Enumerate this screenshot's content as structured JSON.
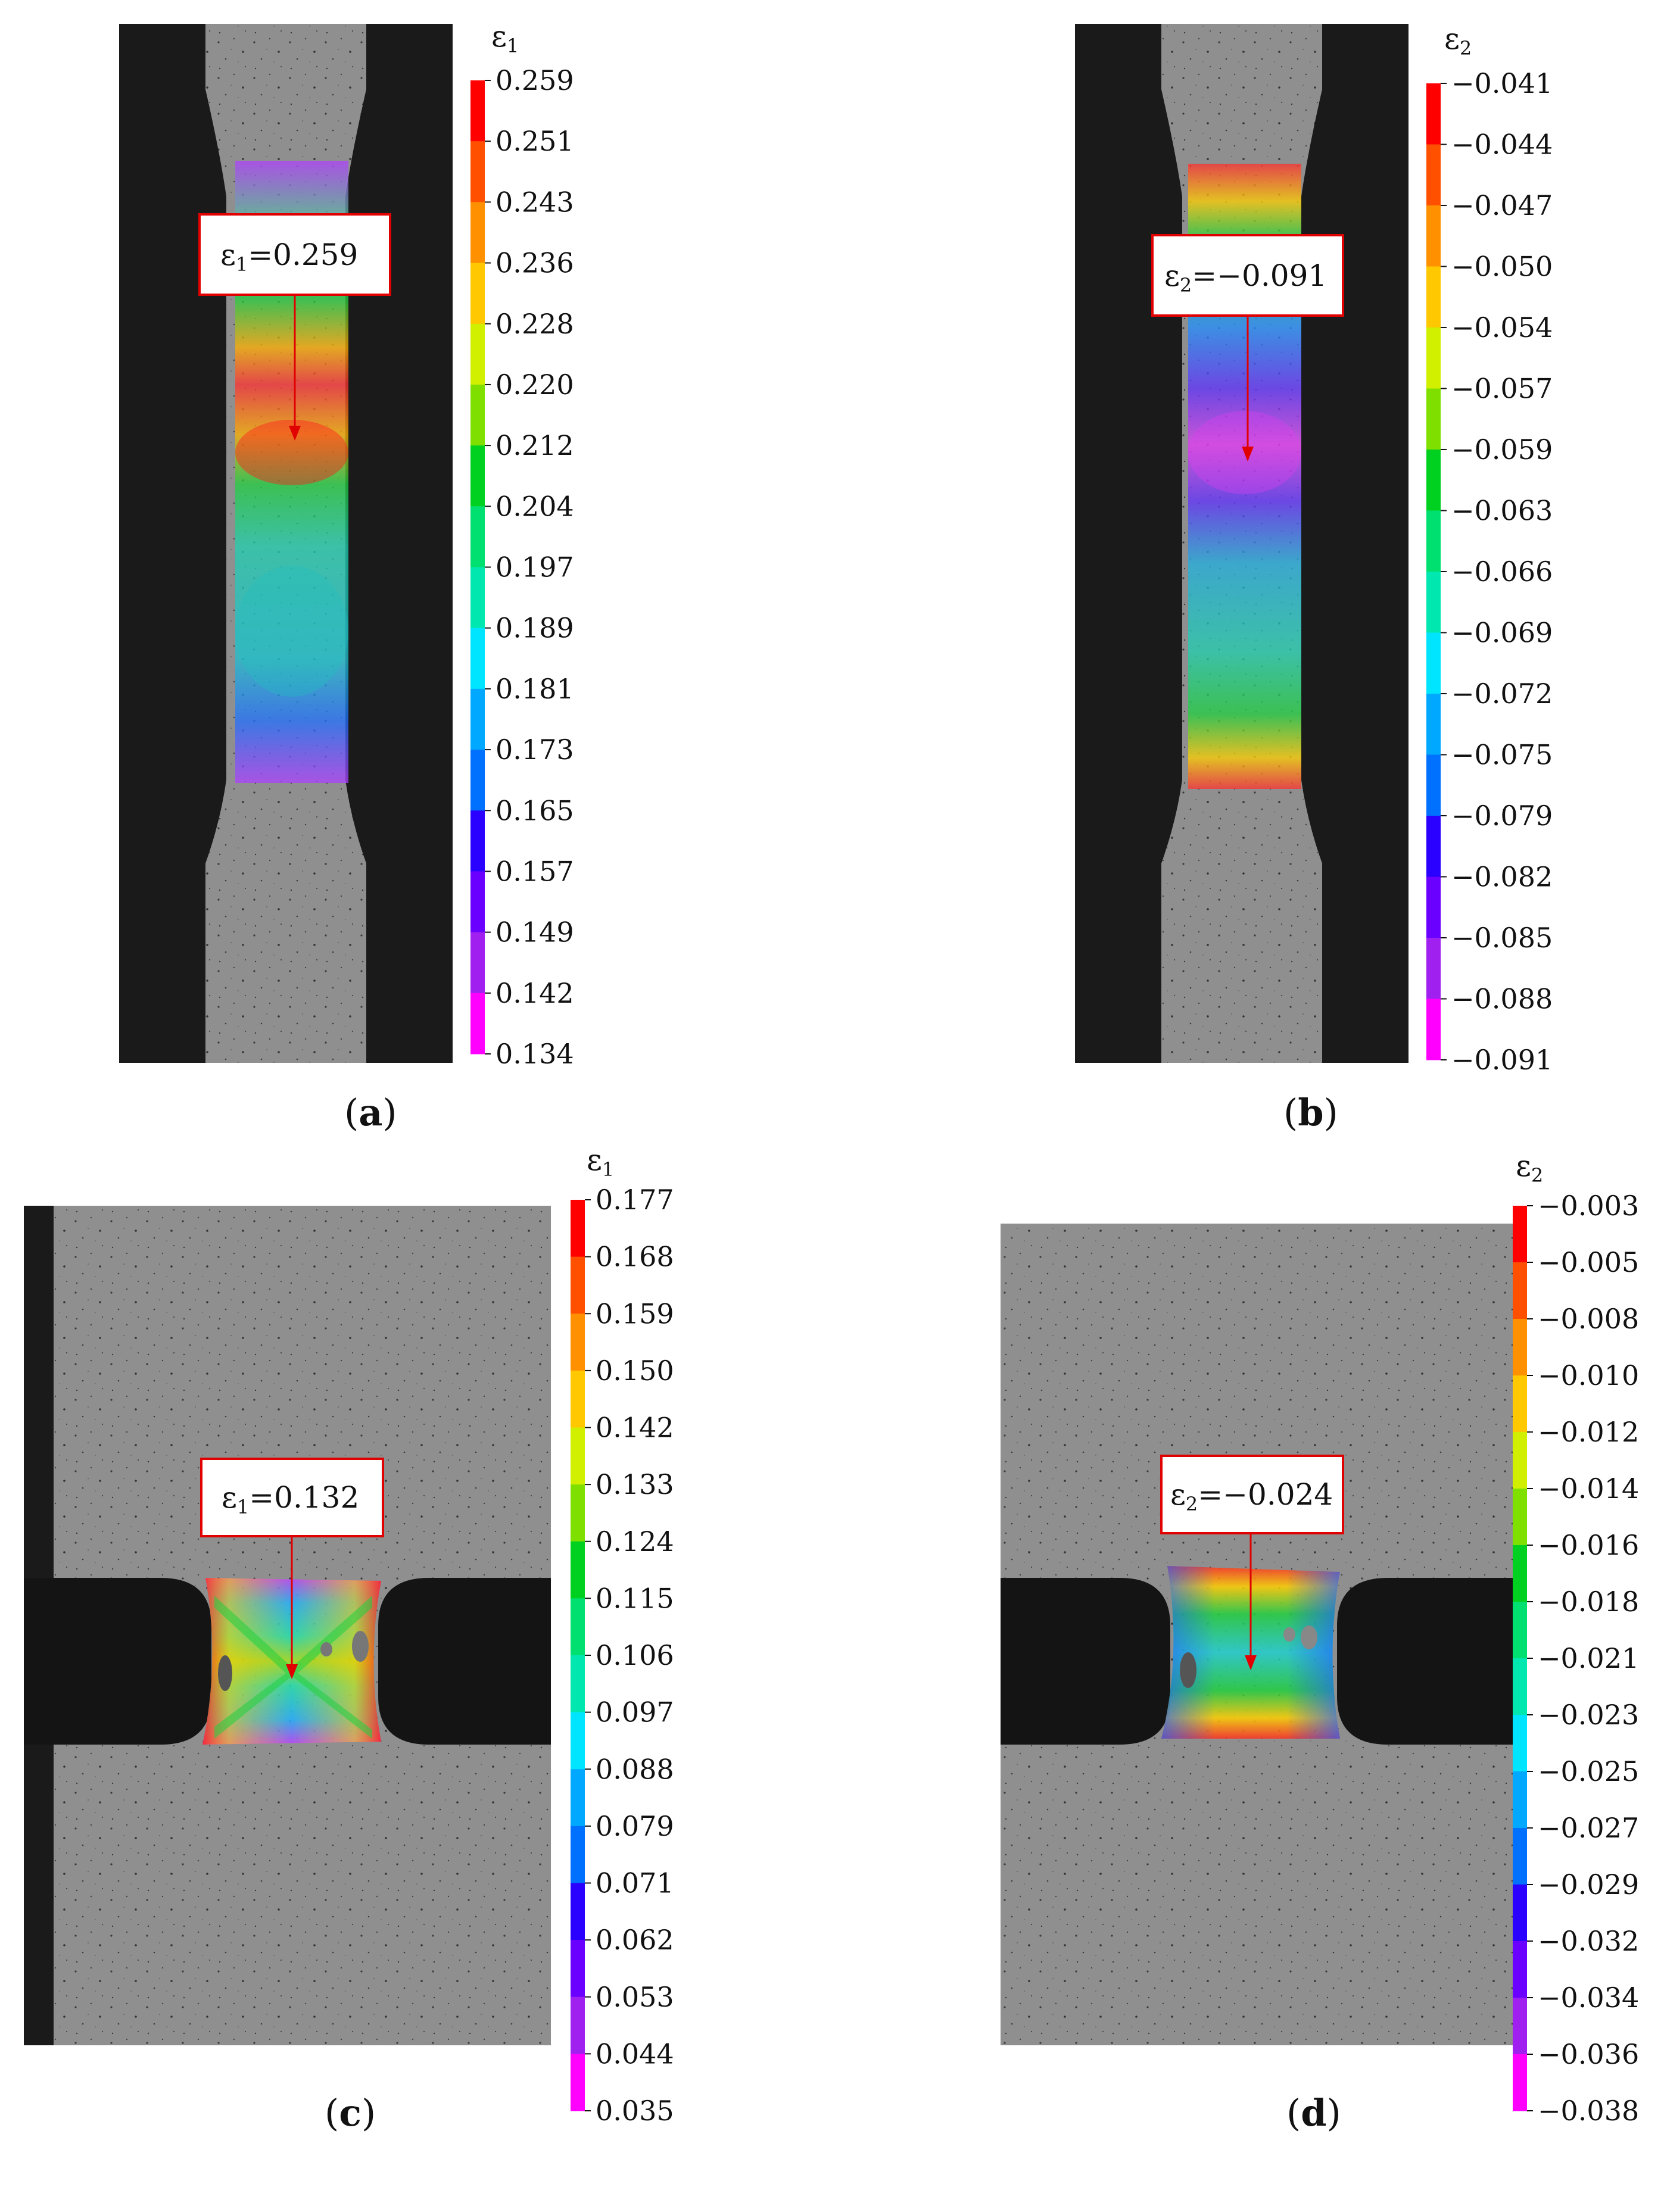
{
  "colors": {
    "background": "#ffffff",
    "specimen": "#8e8e8e",
    "dark_background": "#1a1a1a",
    "callout_border": "#e00000",
    "arrow": "#e00000",
    "legend_steps": [
      "#ff00ff",
      "#a020f0",
      "#6a00ff",
      "#2a00ff",
      "#0033ff",
      "#0070ff",
      "#00a8ff",
      "#00e5ff",
      "#00e8b0",
      "#00e070",
      "#00d020",
      "#7fe000",
      "#d0f000",
      "#ffff00",
      "#ffc800",
      "#ff9000",
      "#ff5000",
      "#ff0000"
    ]
  },
  "panels": [
    {
      "id": "a",
      "label": "a",
      "colorbar_title": "ε",
      "colorbar_subscript": "1",
      "ticks": [
        "0.259",
        "0.251",
        "0.243",
        "0.236",
        "0.228",
        "0.220",
        "0.212",
        "0.204",
        "0.197",
        "0.189",
        "0.181",
        "0.173",
        "0.165",
        "0.157",
        "0.149",
        "0.142",
        "0.134"
      ],
      "callout": {
        "symbol": "ε",
        "subscript": "1",
        "value": "=0.259"
      }
    },
    {
      "id": "b",
      "label": "b",
      "colorbar_title": "ε",
      "colorbar_subscript": "2",
      "ticks": [
        "−0.041",
        "−0.044",
        "−0.047",
        "−0.050",
        "−0.054",
        "−0.057",
        "−0.059",
        "−0.063",
        "−0.066",
        "−0.069",
        "−0.072",
        "−0.075",
        "−0.079",
        "−0.082",
        "−0.085",
        "−0.088",
        "−0.091"
      ],
      "callout": {
        "symbol": "ε",
        "subscript": "2",
        "value": "=−0.091"
      }
    },
    {
      "id": "c",
      "label": "c",
      "colorbar_title": "ε",
      "colorbar_subscript": "1",
      "ticks": [
        "0.177",
        "0.168",
        "0.159",
        "0.150",
        "0.142",
        "0.133",
        "0.124",
        "0.115",
        "0.106",
        "0.097",
        "0.088",
        "0.079",
        "0.071",
        "0.062",
        "0.053",
        "0.044",
        "0.035"
      ],
      "callout": {
        "symbol": "ε",
        "subscript": "1",
        "value": "=0.132"
      }
    },
    {
      "id": "d",
      "label": "d",
      "colorbar_title": "ε",
      "colorbar_subscript": "2",
      "ticks": [
        "−0.003",
        "−0.005",
        "−0.008",
        "−0.010",
        "−0.012",
        "−0.014",
        "−0.016",
        "−0.018",
        "−0.021",
        "−0.023",
        "−0.025",
        "−0.027",
        "−0.029",
        "−0.032",
        "−0.034",
        "−0.036",
        "−0.038"
      ],
      "callout": {
        "symbol": "ε",
        "subscript": "2",
        "value": "=−0.024"
      }
    }
  ]
}
